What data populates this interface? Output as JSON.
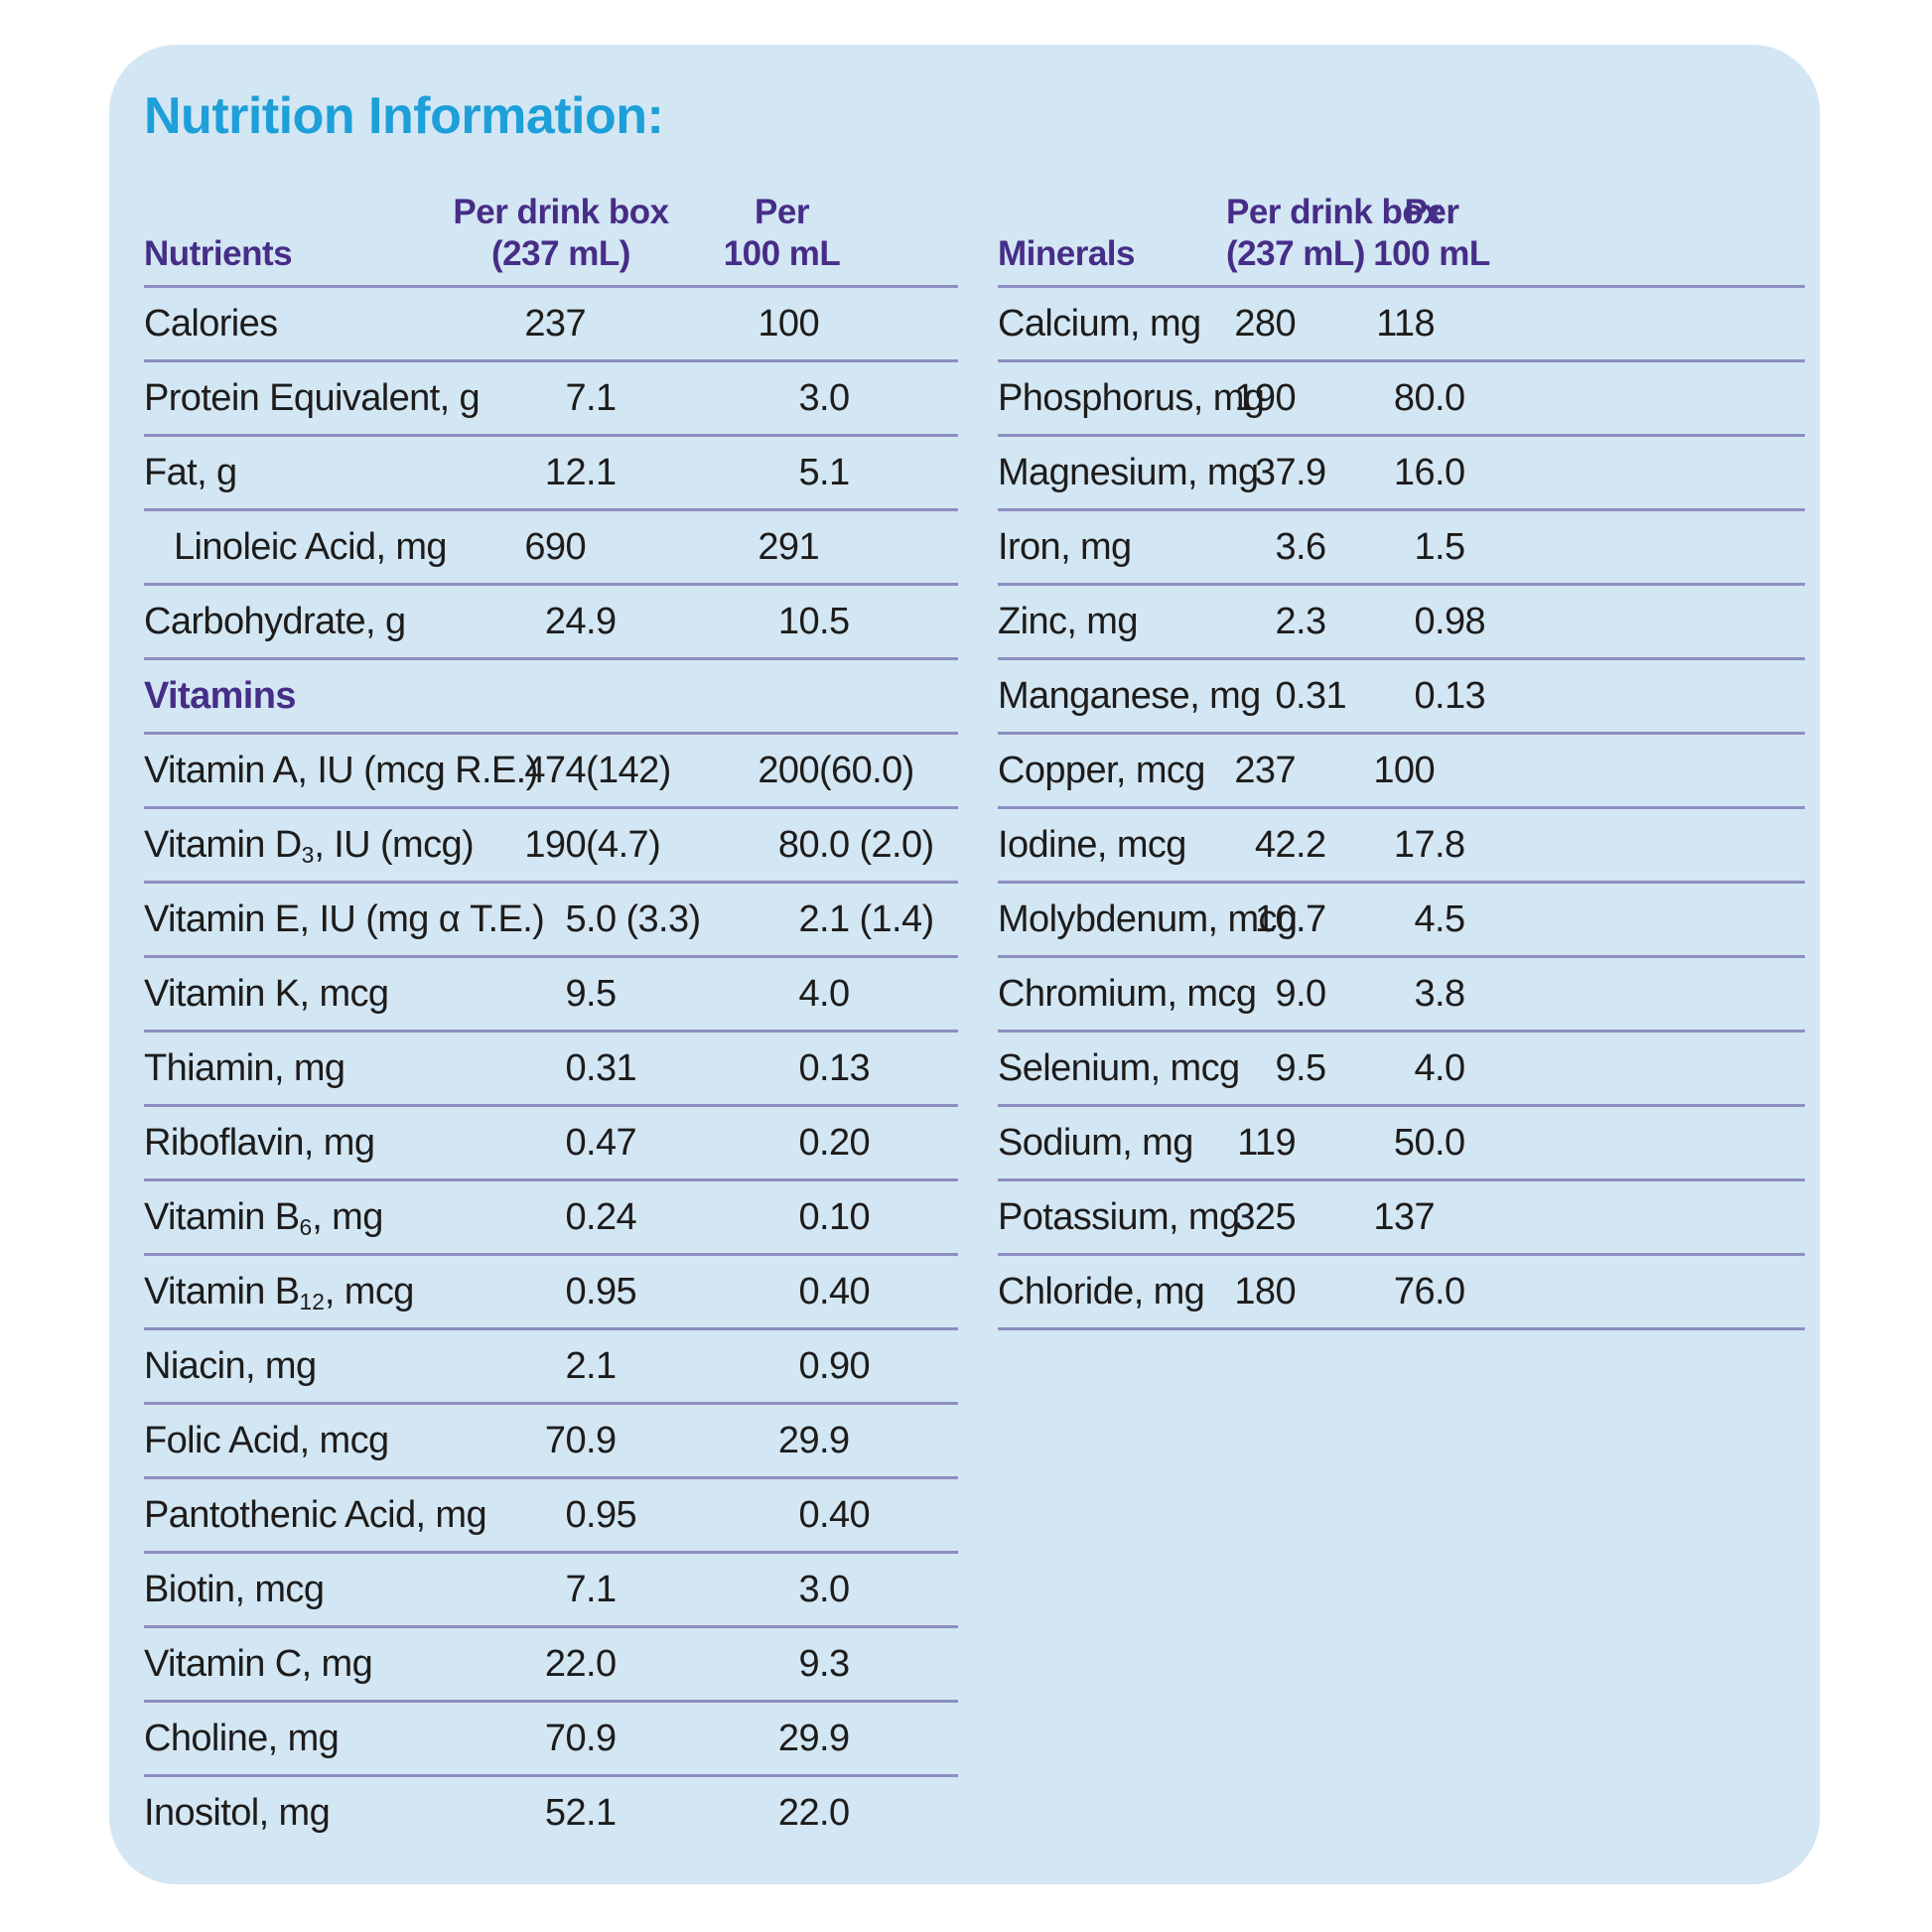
{
  "title": "Nutrition Information:",
  "colors": {
    "card_background": "#d3e6f3",
    "title_cyan": "#1d9fd9",
    "header_purple": "#462d87",
    "separator_line": "#8d8ec2",
    "body_text": "#1d1c1b"
  },
  "left_table": {
    "header": {
      "col0": "Nutrients",
      "col1_line1": "Per drink box",
      "col1_line2": "(237 mL)",
      "col2_line1": "Per",
      "col2_line2": "100 mL"
    },
    "rows": [
      {
        "label": "Calories",
        "per_box": "237",
        "per_100ml": "100"
      },
      {
        "label": "Protein Equivalent, g",
        "per_box": "7.1",
        "per_100ml": "3.0"
      },
      {
        "label": "Fat, g",
        "per_box": "12.1",
        "per_100ml": "5.1"
      },
      {
        "label": "Linoleic Acid, mg",
        "indent": true,
        "per_box": "690",
        "per_100ml": "291"
      },
      {
        "label": "Carbohydrate, g",
        "per_box": "24.9",
        "per_100ml": "10.5"
      },
      {
        "type": "subheader",
        "label": "Vitamins"
      },
      {
        "label": "Vitamin A, IU (mcg R.E.)",
        "per_box": "474 (142)",
        "per_100ml": "200 (60.0)"
      },
      {
        "label": "Vitamin D~3~, IU (mcg)",
        "per_box": "190 (4.7)",
        "per_100ml": "80.0 (2.0)"
      },
      {
        "label": "Vitamin E, IU (mg α T.E.)",
        "per_box": "5.0 (3.3)",
        "per_100ml": "2.1 (1.4)"
      },
      {
        "label": "Vitamin K, mcg",
        "per_box": "9.5",
        "per_100ml": "4.0"
      },
      {
        "label": "Thiamin, mg",
        "per_box": "0.31",
        "per_100ml": "0.13"
      },
      {
        "label": "Riboflavin, mg",
        "per_box": "0.47",
        "per_100ml": "0.20"
      },
      {
        "label": "Vitamin B~6~, mg",
        "per_box": "0.24",
        "per_100ml": "0.10"
      },
      {
        "label": "Vitamin B~12~, mcg",
        "per_box": "0.95",
        "per_100ml": "0.40"
      },
      {
        "label": "Niacin, mg",
        "per_box": "2.1",
        "per_100ml": "0.90"
      },
      {
        "label": "Folic Acid, mcg",
        "per_box": "70.9",
        "per_100ml": "29.9"
      },
      {
        "label": "Pantothenic Acid, mg",
        "per_box": "0.95",
        "per_100ml": "0.40"
      },
      {
        "label": "Biotin, mcg",
        "per_box": "7.1",
        "per_100ml": "3.0"
      },
      {
        "label": "Vitamin C, mg",
        "per_box": "22.0",
        "per_100ml": "9.3"
      },
      {
        "label": "Choline, mg",
        "per_box": "70.9",
        "per_100ml": "29.9"
      },
      {
        "label": "Inositol, mg",
        "per_box": "52.1",
        "per_100ml": "22.0",
        "no_border": true
      }
    ]
  },
  "right_table": {
    "header": {
      "col0": "Minerals",
      "col1_line1": "Per drink box",
      "col1_line2": "(237 mL)",
      "col2_line1": "Per",
      "col2_line2": "100 mL"
    },
    "rows": [
      {
        "label": "Calcium, mg",
        "per_box": "280",
        "per_100ml": "118"
      },
      {
        "label": "Phosphorus, mg",
        "per_box": "190",
        "per_100ml": "80.0"
      },
      {
        "label": "Magnesium, mg",
        "per_box": "37.9",
        "per_100ml": "16.0"
      },
      {
        "label": "Iron, mg",
        "per_box": "3.6",
        "per_100ml": "1.5"
      },
      {
        "label": "Zinc, mg",
        "per_box": "2.3",
        "per_100ml": "0.98"
      },
      {
        "label": "Manganese, mg",
        "per_box": "0.31",
        "per_100ml": "0.13"
      },
      {
        "label": "Copper, mcg",
        "per_box": "237",
        "per_100ml": "100"
      },
      {
        "label": "Iodine, mcg",
        "per_box": "42.2",
        "per_100ml": "17.8"
      },
      {
        "label": "Molybdenum, mcg",
        "per_box": "10.7",
        "per_100ml": "4.5"
      },
      {
        "label": "Chromium, mcg",
        "per_box": "9.0",
        "per_100ml": "3.8"
      },
      {
        "label": "Selenium, mcg",
        "per_box": "9.5",
        "per_100ml": "4.0"
      },
      {
        "label": "Sodium, mg",
        "per_box": "119",
        "per_100ml": "50.0"
      },
      {
        "label": "Potassium, mg",
        "per_box": "325",
        "per_100ml": "137"
      },
      {
        "label": "Chloride, mg",
        "per_box": "180",
        "per_100ml": "76.0"
      }
    ]
  }
}
